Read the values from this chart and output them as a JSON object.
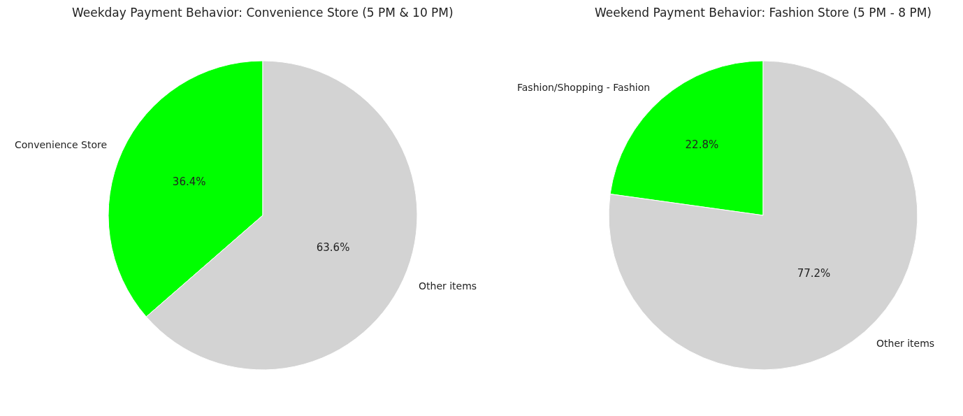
{
  "chart_data": [
    {
      "type": "pie",
      "title": "Weekday Payment Behavior: Convenience Store (5 PM & 10 PM)",
      "categories": [
        "Convenience Store",
        "Other items"
      ],
      "values": [
        36.4,
        63.6
      ],
      "colors": [
        "#00ff00",
        "#d3d3d3"
      ],
      "value_labels": [
        "36.4%",
        "63.6%"
      ]
    },
    {
      "type": "pie",
      "title": "Weekend Payment Behavior: Fashion Store (5 PM - 8 PM)",
      "categories": [
        "Fashion/Shopping - Fashion",
        "Other items"
      ],
      "values": [
        22.8,
        77.2
      ],
      "colors": [
        "#00ff00",
        "#d3d3d3"
      ],
      "value_labels": [
        "22.8%",
        "77.2%"
      ]
    }
  ]
}
